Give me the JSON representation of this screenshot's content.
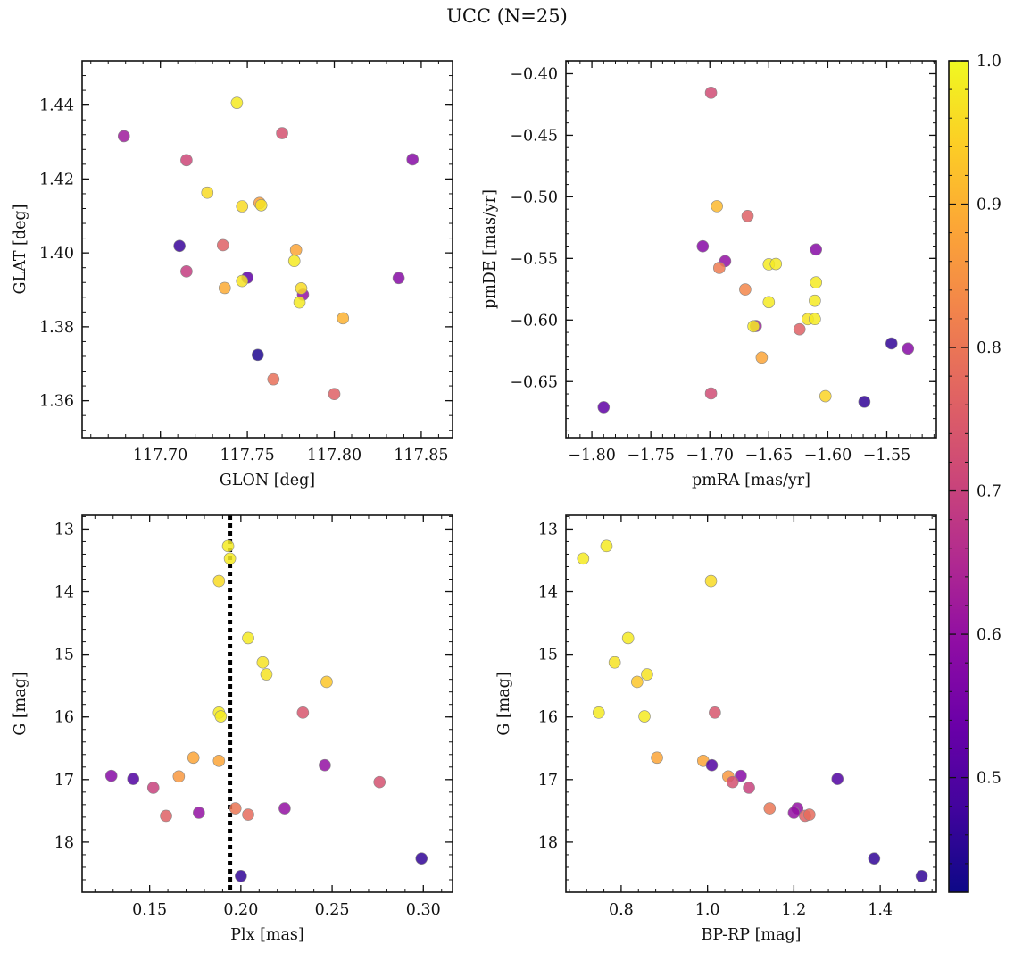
{
  "figure": {
    "title": "UCC (N=25)"
  },
  "colorbar": {
    "cmap": "plasma",
    "range": [
      0.42,
      1.0
    ],
    "ticks": [
      0.5,
      0.6,
      0.7,
      0.8,
      0.9,
      1.0
    ],
    "tick_labels": [
      "0.5",
      "0.6",
      "0.7",
      "0.8",
      "0.9",
      "1.0"
    ],
    "colors": [
      "#0d0887",
      "#41049d",
      "#6a00a8",
      "#8f0da4",
      "#b12a90",
      "#cc4778",
      "#e16462",
      "#f2844b",
      "#fca636",
      "#fcce25",
      "#f0f921"
    ]
  },
  "chart_data": [
    {
      "type": "scatter",
      "title": "",
      "xlabel": "GLON [deg]",
      "ylabel": "GLAT [deg]",
      "xlim": [
        117.655,
        117.868
      ],
      "ylim": [
        1.35,
        1.452
      ],
      "y_inverted": false,
      "xticks": [
        117.7,
        117.75,
        117.8,
        117.85
      ],
      "xtick_labels": [
        "117.70",
        "117.75",
        "117.80",
        "117.85"
      ],
      "yticks": [
        1.36,
        1.38,
        1.4,
        1.42,
        1.44
      ],
      "ytick_labels": [
        "1.36",
        "1.38",
        "1.40",
        "1.42",
        "1.44"
      ],
      "points": [
        {
          "x": 117.679,
          "y": 1.4316,
          "c": 0.62
        },
        {
          "x": 117.744,
          "y": 1.4406,
          "c": 0.98
        },
        {
          "x": 117.77,
          "y": 1.4324,
          "c": 0.73
        },
        {
          "x": 117.845,
          "y": 1.4253,
          "c": 0.58
        },
        {
          "x": 117.715,
          "y": 1.4251,
          "c": 0.71
        },
        {
          "x": 117.727,
          "y": 1.4163,
          "c": 0.96
        },
        {
          "x": 117.747,
          "y": 1.4126,
          "c": 0.96
        },
        {
          "x": 117.757,
          "y": 1.4135,
          "c": 0.87
        },
        {
          "x": 117.758,
          "y": 1.4129,
          "c": 0.97
        },
        {
          "x": 117.711,
          "y": 1.4019,
          "c": 0.47
        },
        {
          "x": 117.736,
          "y": 1.4021,
          "c": 0.76
        },
        {
          "x": 117.715,
          "y": 1.395,
          "c": 0.69
        },
        {
          "x": 117.778,
          "y": 1.4008,
          "c": 0.88
        },
        {
          "x": 117.777,
          "y": 1.3978,
          "c": 0.98
        },
        {
          "x": 117.75,
          "y": 1.3933,
          "c": 0.52
        },
        {
          "x": 117.747,
          "y": 1.3924,
          "c": 0.97
        },
        {
          "x": 117.737,
          "y": 1.3905,
          "c": 0.89
        },
        {
          "x": 117.782,
          "y": 1.3887,
          "c": 0.6
        },
        {
          "x": 117.781,
          "y": 1.3904,
          "c": 0.96
        },
        {
          "x": 117.78,
          "y": 1.3866,
          "c": 0.98
        },
        {
          "x": 117.837,
          "y": 1.3932,
          "c": 0.58
        },
        {
          "x": 117.805,
          "y": 1.3823,
          "c": 0.9
        },
        {
          "x": 117.756,
          "y": 1.3724,
          "c": 0.44
        },
        {
          "x": 117.765,
          "y": 1.3658,
          "c": 0.79
        },
        {
          "x": 117.8,
          "y": 1.3618,
          "c": 0.76
        }
      ]
    },
    {
      "type": "scatter",
      "title": "",
      "xlabel": "pmRA [mas/yr]",
      "ylabel": "pmDE [mas/yr]",
      "xlim": [
        -1.822,
        -1.508
      ],
      "ylim": [
        -0.6955,
        -0.3895
      ],
      "y_inverted": false,
      "xticks": [
        -1.8,
        -1.75,
        -1.7,
        -1.65,
        -1.6,
        -1.55
      ],
      "xtick_labels": [
        "−1.80",
        "−1.75",
        "−1.70",
        "−1.65",
        "−1.60",
        "−1.55"
      ],
      "yticks": [
        -0.65,
        -0.6,
        -0.55,
        -0.5,
        -0.45,
        -0.4
      ],
      "ytick_labels": [
        "−0.65",
        "−0.60",
        "−0.55",
        "−0.50",
        "−0.45",
        "−0.40"
      ],
      "points": [
        {
          "x": -1.699,
          "y": -0.4155,
          "c": 0.72
        },
        {
          "x": -1.694,
          "y": -0.5076,
          "c": 0.91
        },
        {
          "x": -1.668,
          "y": -0.5155,
          "c": 0.76
        },
        {
          "x": -1.706,
          "y": -0.5401,
          "c": 0.58
        },
        {
          "x": -1.687,
          "y": -0.5522,
          "c": 0.6
        },
        {
          "x": -1.692,
          "y": -0.5577,
          "c": 0.81
        },
        {
          "x": -1.61,
          "y": -0.5427,
          "c": 0.58
        },
        {
          "x": -1.65,
          "y": -0.5548,
          "c": 0.98
        },
        {
          "x": -1.644,
          "y": -0.5545,
          "c": 0.98
        },
        {
          "x": -1.61,
          "y": -0.5695,
          "c": 0.98
        },
        {
          "x": -1.67,
          "y": -0.5752,
          "c": 0.83
        },
        {
          "x": -1.65,
          "y": -0.5855,
          "c": 0.98
        },
        {
          "x": -1.611,
          "y": -0.5843,
          "c": 0.98
        },
        {
          "x": -1.661,
          "y": -0.6049,
          "c": 0.62
        },
        {
          "x": -1.663,
          "y": -0.6051,
          "c": 0.98
        },
        {
          "x": -1.617,
          "y": -0.5993,
          "c": 0.97
        },
        {
          "x": -1.611,
          "y": -0.5992,
          "c": 0.98
        },
        {
          "x": -1.624,
          "y": -0.6075,
          "c": 0.76
        },
        {
          "x": -1.656,
          "y": -0.6305,
          "c": 0.88
        },
        {
          "x": -1.546,
          "y": -0.619,
          "c": 0.46
        },
        {
          "x": -1.532,
          "y": -0.6232,
          "c": 0.58
        },
        {
          "x": -1.699,
          "y": -0.6596,
          "c": 0.72
        },
        {
          "x": -1.602,
          "y": -0.6618,
          "c": 0.95
        },
        {
          "x": -1.569,
          "y": -0.6664,
          "c": 0.46
        },
        {
          "x": -1.79,
          "y": -0.6708,
          "c": 0.52
        }
      ]
    },
    {
      "type": "scatter",
      "title": "",
      "xlabel": "Plx [mas]",
      "ylabel": "G [mag]",
      "xlim": [
        0.113,
        0.316
      ],
      "ylim": [
        12.78,
        18.8
      ],
      "y_inverted": true,
      "xticks": [
        0.15,
        0.2,
        0.25,
        0.3
      ],
      "xtick_labels": [
        "0.15",
        "0.20",
        "0.25",
        "0.30"
      ],
      "yticks": [
        13,
        14,
        15,
        16,
        17,
        18
      ],
      "ytick_labels": [
        "13",
        "14",
        "15",
        "16",
        "17",
        "18"
      ],
      "vline": {
        "x": 0.194,
        "style": "dotted"
      },
      "points": [
        {
          "x": 0.193,
          "y": 13.27,
          "c": 0.98
        },
        {
          "x": 0.194,
          "y": 13.47,
          "c": 0.98
        },
        {
          "x": 0.188,
          "y": 13.83,
          "c": 0.96
        },
        {
          "x": 0.204,
          "y": 14.74,
          "c": 0.98
        },
        {
          "x": 0.212,
          "y": 15.13,
          "c": 0.97
        },
        {
          "x": 0.214,
          "y": 15.32,
          "c": 0.97
        },
        {
          "x": 0.247,
          "y": 15.44,
          "c": 0.93
        },
        {
          "x": 0.234,
          "y": 15.93,
          "c": 0.74
        },
        {
          "x": 0.188,
          "y": 15.93,
          "c": 0.98
        },
        {
          "x": 0.189,
          "y": 15.99,
          "c": 0.98
        },
        {
          "x": 0.174,
          "y": 16.65,
          "c": 0.88
        },
        {
          "x": 0.188,
          "y": 16.7,
          "c": 0.88
        },
        {
          "x": 0.246,
          "y": 16.77,
          "c": 0.6
        },
        {
          "x": 0.166,
          "y": 16.95,
          "c": 0.86
        },
        {
          "x": 0.129,
          "y": 16.94,
          "c": 0.58
        },
        {
          "x": 0.141,
          "y": 16.99,
          "c": 0.5
        },
        {
          "x": 0.152,
          "y": 17.13,
          "c": 0.7
        },
        {
          "x": 0.276,
          "y": 17.04,
          "c": 0.73
        },
        {
          "x": 0.197,
          "y": 17.46,
          "c": 0.8
        },
        {
          "x": 0.224,
          "y": 17.46,
          "c": 0.6
        },
        {
          "x": 0.177,
          "y": 17.53,
          "c": 0.6
        },
        {
          "x": 0.159,
          "y": 17.58,
          "c": 0.76
        },
        {
          "x": 0.204,
          "y": 17.56,
          "c": 0.78
        },
        {
          "x": 0.299,
          "y": 18.26,
          "c": 0.46
        },
        {
          "x": 0.2,
          "y": 18.54,
          "c": 0.46
        }
      ]
    },
    {
      "type": "scatter",
      "title": "",
      "xlabel": "BP-RP [mag]",
      "ylabel": "G [mag]",
      "xlim": [
        0.672,
        1.53
      ],
      "ylim": [
        12.78,
        18.8
      ],
      "y_inverted": true,
      "xticks": [
        0.8,
        1.0,
        1.2,
        1.4
      ],
      "xtick_labels": [
        "0.8",
        "1.0",
        "1.2",
        "1.4"
      ],
      "yticks": [
        13,
        14,
        15,
        16,
        17,
        18
      ],
      "ytick_labels": [
        "13",
        "14",
        "15",
        "16",
        "17",
        "18"
      ],
      "points": [
        {
          "x": 0.712,
          "y": 13.47,
          "c": 0.98
        },
        {
          "x": 0.766,
          "y": 13.27,
          "c": 0.98
        },
        {
          "x": 1.008,
          "y": 13.83,
          "c": 0.96
        },
        {
          "x": 0.816,
          "y": 14.74,
          "c": 0.98
        },
        {
          "x": 0.785,
          "y": 15.13,
          "c": 0.97
        },
        {
          "x": 0.86,
          "y": 15.32,
          "c": 0.97
        },
        {
          "x": 0.837,
          "y": 15.44,
          "c": 0.93
        },
        {
          "x": 0.748,
          "y": 15.93,
          "c": 0.98
        },
        {
          "x": 0.854,
          "y": 15.99,
          "c": 0.98
        },
        {
          "x": 1.017,
          "y": 15.93,
          "c": 0.74
        },
        {
          "x": 0.883,
          "y": 16.65,
          "c": 0.88
        },
        {
          "x": 0.99,
          "y": 16.7,
          "c": 0.88
        },
        {
          "x": 1.01,
          "y": 16.77,
          "c": 0.5
        },
        {
          "x": 1.048,
          "y": 16.95,
          "c": 0.86
        },
        {
          "x": 1.077,
          "y": 16.94,
          "c": 0.58
        },
        {
          "x": 1.058,
          "y": 17.04,
          "c": 0.73
        },
        {
          "x": 1.096,
          "y": 17.13,
          "c": 0.7
        },
        {
          "x": 1.301,
          "y": 16.99,
          "c": 0.5
        },
        {
          "x": 1.144,
          "y": 17.46,
          "c": 0.8
        },
        {
          "x": 1.208,
          "y": 17.46,
          "c": 0.6
        },
        {
          "x": 1.2,
          "y": 17.53,
          "c": 0.6
        },
        {
          "x": 1.226,
          "y": 17.58,
          "c": 0.76
        },
        {
          "x": 1.236,
          "y": 17.56,
          "c": 0.78
        },
        {
          "x": 1.386,
          "y": 18.26,
          "c": 0.46
        },
        {
          "x": 1.496,
          "y": 18.54,
          "c": 0.46
        }
      ]
    }
  ]
}
